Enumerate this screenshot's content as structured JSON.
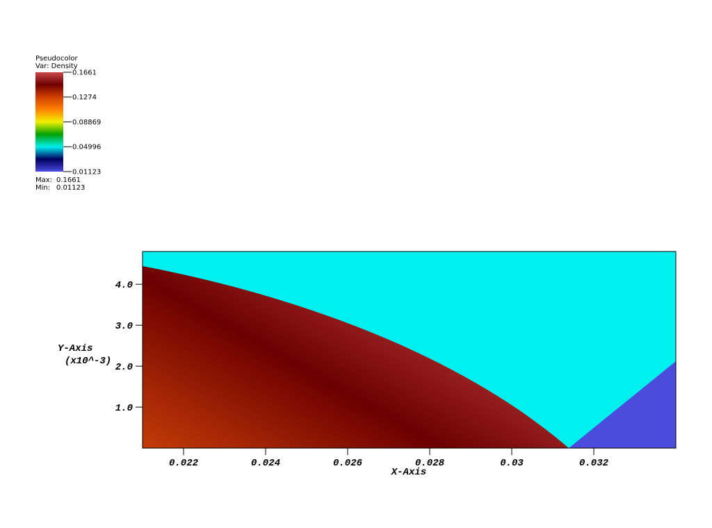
{
  "chart_data": {
    "type": "pseudocolor",
    "legend": {
      "title": "Pseudocolor",
      "variable": "Var: Density",
      "range": [
        0.01123,
        0.1661
      ],
      "ticks": [
        0.1661,
        0.1274,
        0.08869,
        0.04996,
        0.01123
      ],
      "max_label": "Max:",
      "max": 0.1661,
      "min_label": "Min:",
      "min": 0.01123,
      "colors": [
        "#4b4bdc",
        "#000060",
        "#00f0f0",
        "#00a000",
        "#f0f000",
        "#ff8000",
        "#d04000",
        "#700000",
        "#c84848"
      ]
    },
    "x_label": "X-Axis",
    "y_label": "Y-Axis",
    "y_unit": "(x10^-3)",
    "xlim": [
      0.021,
      0.034
    ],
    "xticks": [
      0.022,
      0.024,
      0.026,
      0.028,
      0.03,
      0.032
    ],
    "ylim": [
      0,
      4.8
    ],
    "yticks": [
      {
        "value": 1,
        "label": "1.0"
      },
      {
        "value": 2,
        "label": "2.0"
      },
      {
        "value": 3,
        "label": "3.0"
      },
      {
        "value": 4,
        "label": "4.0"
      }
    ]
  }
}
